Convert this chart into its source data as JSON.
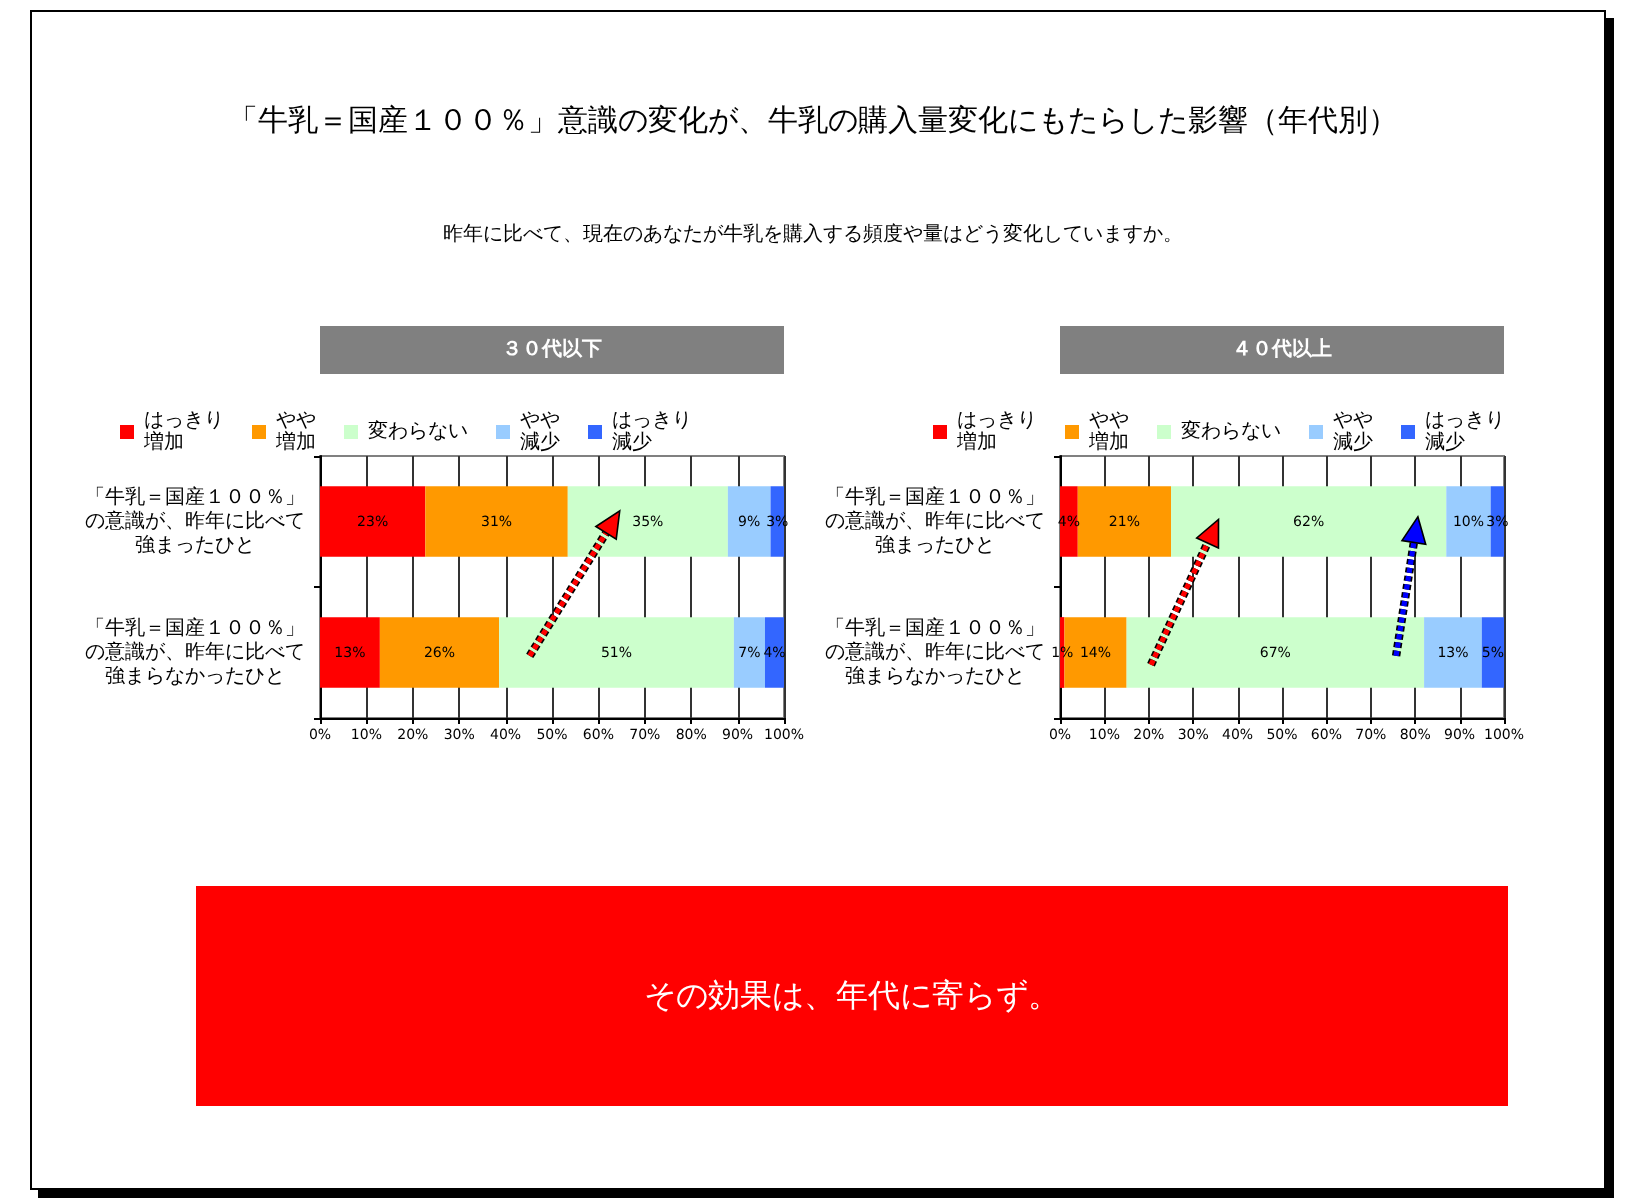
{
  "chart_data": [
    {
      "type": "other",
      "title": "「牛乳＝国産１００％」意識の変化が、牛乳の購入量変化にもたらした影響（年代別）",
      "subtitle": "昨年に比べて、現在のあなたが牛乳を購入する頻度や量はどう変化していますか。"
    },
    {
      "type": "bar",
      "title": "３０代以下",
      "orientation": "horizontal",
      "stacked": true,
      "categories": [
        "「牛乳＝国産１００％」の意識が、昨年に比べて強まったひと",
        "「牛乳＝国産１００％」の意識が、昨年に比べて強まらなかったひと"
      ],
      "series": [
        {
          "name": "はっきり増加",
          "color": "#ff0000",
          "values": [
            22.7,
            12.9
          ],
          "value_labels": [
            "23%",
            "13%"
          ]
        },
        {
          "name": "やや増加",
          "color": "#ff9900",
          "values": [
            30.7,
            25.7
          ],
          "value_labels": [
            "31%",
            "26%"
          ]
        },
        {
          "name": "変わらない",
          "color": "#ccffcc",
          "values": [
            34.5,
            50.6
          ],
          "value_labels": [
            "35%",
            "51%"
          ]
        },
        {
          "name": "やや減少",
          "color": "#99ccff",
          "values": [
            9.2,
            6.7
          ],
          "value_labels": [
            "9%",
            "7%"
          ]
        },
        {
          "name": "はっきり減少",
          "color": "#3366ff",
          "values": [
            2.9,
            4.1
          ],
          "value_labels": [
            "3%",
            "4%"
          ]
        }
      ],
      "xlim": [
        0,
        100
      ],
      "xticks": [
        {
          "value": 0,
          "label": "0%"
        },
        {
          "value": 10,
          "label": "10%"
        },
        {
          "value": 20,
          "label": "20%"
        },
        {
          "value": 30,
          "label": "30%"
        },
        {
          "value": 40,
          "label": "40%"
        },
        {
          "value": 50,
          "label": "50%"
        },
        {
          "value": 60,
          "label": "60%"
        },
        {
          "value": 70,
          "label": "70%"
        },
        {
          "value": 80,
          "label": "80%"
        },
        {
          "value": 90,
          "label": "90%"
        },
        {
          "value": 100,
          "label": "100%"
        }
      ],
      "grid": "x",
      "legend": "top"
    },
    {
      "type": "bar",
      "title": "４０代以上",
      "orientation": "horizontal",
      "stacked": true,
      "categories": [
        "「牛乳＝国産１００％」の意識が、昨年に比べて強まったひと",
        "「牛乳＝国産１００％」の意識が、昨年に比べて強まらなかったひと"
      ],
      "series": [
        {
          "name": "はっきり増加",
          "color": "#ff0000",
          "values": [
            4,
            1
          ],
          "value_labels": [
            "4%",
            "1%"
          ]
        },
        {
          "name": "やや増加",
          "color": "#ff9900",
          "values": [
            21,
            14
          ],
          "value_labels": [
            "21%",
            "14%"
          ]
        },
        {
          "name": "変わらない",
          "color": "#ccffcc",
          "values": [
            62,
            67
          ],
          "value_labels": [
            "62%",
            "67%"
          ]
        },
        {
          "name": "やや減少",
          "color": "#99ccff",
          "values": [
            10,
            13
          ],
          "value_labels": [
            "10%",
            "13%"
          ]
        },
        {
          "name": "はっきり減少",
          "color": "#3366ff",
          "values": [
            3,
            5
          ],
          "value_labels": [
            "3%",
            "5%"
          ]
        }
      ],
      "xlim": [
        0,
        100
      ],
      "xticks": [
        {
          "value": 0,
          "label": "0%"
        },
        {
          "value": 10,
          "label": "10%"
        },
        {
          "value": 20,
          "label": "20%"
        },
        {
          "value": 30,
          "label": "30%"
        },
        {
          "value": 40,
          "label": "40%"
        },
        {
          "value": 50,
          "label": "50%"
        },
        {
          "value": 60,
          "label": "60%"
        },
        {
          "value": 70,
          "label": "70%"
        },
        {
          "value": 80,
          "label": "80%"
        },
        {
          "value": 90,
          "label": "90%"
        },
        {
          "value": 100,
          "label": "100%"
        }
      ],
      "grid": "x",
      "legend": "top"
    },
    {
      "type": "other",
      "annotations": [
        "その効果は、年代に寄らず。"
      ]
    }
  ]
}
